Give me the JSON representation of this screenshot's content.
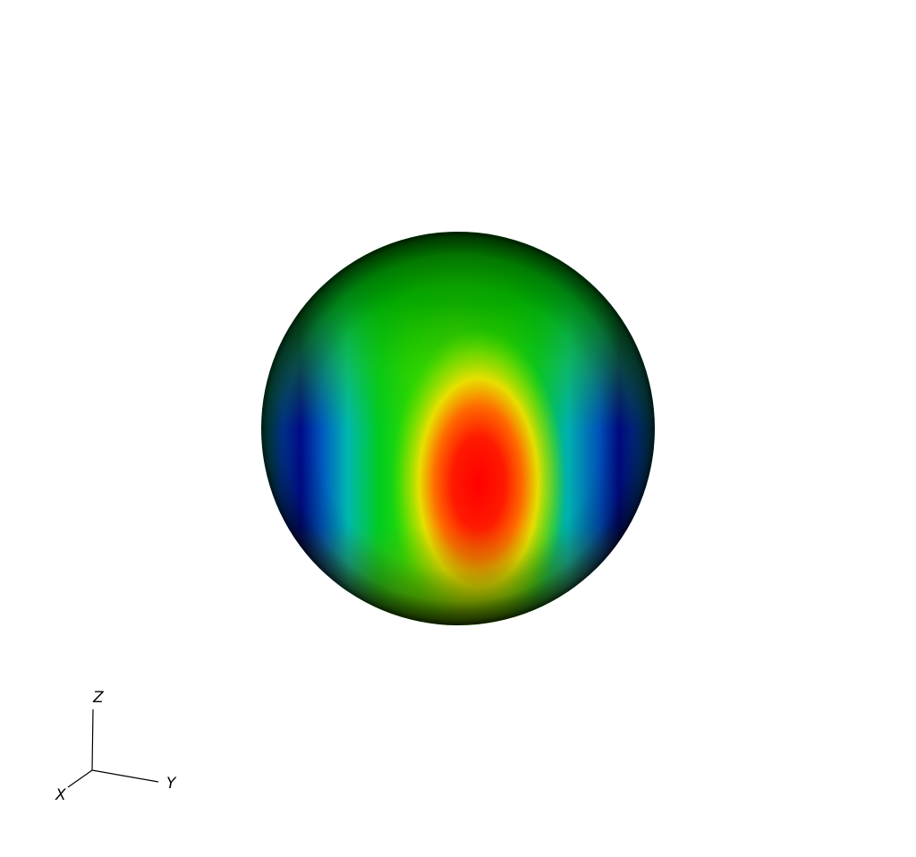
{
  "scene": {
    "background_color": "#ffffff",
    "object": "sphere",
    "colormap": [
      "#00007a",
      "#0050c0",
      "#00b0d0",
      "#00d000",
      "#e8e800",
      "#ff7a00",
      "#ff0000"
    ],
    "orientation_triad": {
      "axes": [
        {
          "id": "x",
          "label": "X"
        },
        {
          "id": "y",
          "label": "Y"
        },
        {
          "id": "z",
          "label": "Z"
        }
      ],
      "line_color": "#000000"
    }
  }
}
